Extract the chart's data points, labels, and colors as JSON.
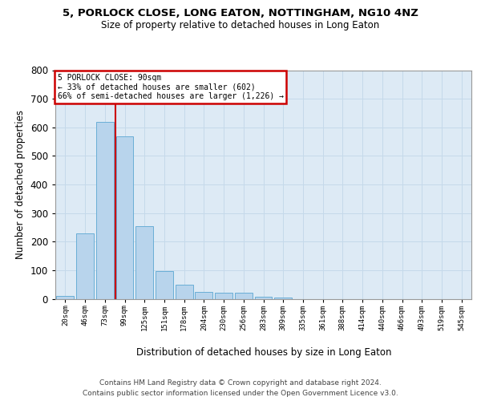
{
  "title": "5, PORLOCK CLOSE, LONG EATON, NOTTINGHAM, NG10 4NZ",
  "subtitle": "Size of property relative to detached houses in Long Eaton",
  "xlabel": "Distribution of detached houses by size in Long Eaton",
  "ylabel": "Number of detached properties",
  "footnote1": "Contains HM Land Registry data © Crown copyright and database right 2024.",
  "footnote2": "Contains public sector information licensed under the Open Government Licence v3.0.",
  "xtick_labels": [
    "20sqm",
    "46sqm",
    "73sqm",
    "99sqm",
    "125sqm",
    "151sqm",
    "178sqm",
    "204sqm",
    "230sqm",
    "256sqm",
    "283sqm",
    "309sqm",
    "335sqm",
    "361sqm",
    "388sqm",
    "414sqm",
    "440sqm",
    "466sqm",
    "493sqm",
    "519sqm",
    "545sqm"
  ],
  "bar_values": [
    10,
    228,
    618,
    568,
    253,
    96,
    50,
    25,
    22,
    22,
    8,
    3,
    0,
    0,
    0,
    0,
    0,
    0,
    0,
    0,
    0
  ],
  "bar_color": "#b8d4ec",
  "bar_edge_color": "#6aaed6",
  "vline_bin": 2.54,
  "annotation_line1": "5 PORLOCK CLOSE: 90sqm",
  "annotation_line2": "← 33% of detached houses are smaller (602)",
  "annotation_line3": "66% of semi-detached houses are larger (1,226) →",
  "ann_box_fc": "#ffffff",
  "ann_box_ec": "#cc0000",
  "vline_color": "#cc0000",
  "ylim_max": 800,
  "yticks": [
    0,
    100,
    200,
    300,
    400,
    500,
    600,
    700,
    800
  ],
  "grid_color": "#c5d9ea",
  "bg_color": "#ddeaf5",
  "title_fontsize": 9.5,
  "subtitle_fontsize": 8.5,
  "ylabel_fontsize": 8.5,
  "xlabel_fontsize": 8.5,
  "footnote_fontsize": 6.5
}
